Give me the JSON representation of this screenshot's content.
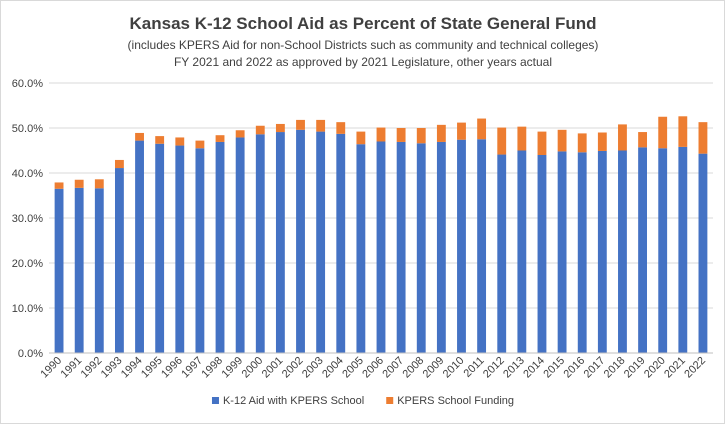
{
  "chart_data": {
    "type": "bar",
    "stacked": true,
    "title": "Kansas K-12 School Aid as Percent of State General Fund",
    "subtitle_lines": [
      "(includes KPERS Aid for non-School Districts such as community and technical colleges)",
      "FY 2021 and 2022 as approved by 2021 Legislature, other years actual"
    ],
    "xlabel": "",
    "ylabel": "",
    "ylim": [
      0,
      60
    ],
    "yticks": [
      0,
      10,
      20,
      30,
      40,
      50,
      60
    ],
    "ytick_labels": [
      "0.0%",
      "10.0%",
      "20.0%",
      "30.0%",
      "40.0%",
      "50.0%",
      "60.0%"
    ],
    "grid": true,
    "legend_position": "bottom",
    "categories": [
      "1990",
      "1991",
      "1992",
      "1993",
      "1994",
      "1995",
      "1996",
      "1997",
      "1998",
      "1999",
      "2000",
      "2001",
      "2002",
      "2003",
      "2004",
      "2005",
      "2006",
      "2007",
      "2008",
      "2009",
      "2010",
      "2011",
      "2012",
      "2013",
      "2014",
      "2015",
      "2016",
      "2017",
      "2018",
      "2019",
      "2020",
      "2021",
      "2022"
    ],
    "series": [
      {
        "name": "K-12 Aid with KPERS School",
        "color": "#4472c4",
        "values": [
          36.5,
          36.7,
          36.6,
          41.1,
          47.2,
          46.5,
          46.1,
          45.5,
          46.9,
          47.9,
          48.6,
          49.1,
          49.6,
          49.2,
          48.7,
          46.4,
          47.0,
          46.9,
          46.6,
          46.9,
          47.4,
          47.5,
          44.1,
          45.0,
          44.0,
          44.8,
          44.6,
          44.9,
          45.0,
          45.7,
          45.5,
          45.8,
          44.3
        ]
      },
      {
        "name": "KPERS School Funding",
        "color": "#ed7d31",
        "values": [
          1.4,
          1.8,
          2.0,
          1.8,
          1.7,
          1.7,
          1.8,
          1.7,
          1.5,
          1.6,
          1.9,
          1.8,
          2.2,
          2.6,
          2.6,
          2.8,
          3.1,
          3.1,
          3.4,
          3.8,
          3.8,
          4.6,
          6.0,
          5.3,
          5.2,
          4.8,
          4.2,
          4.1,
          5.8,
          3.4,
          7.0,
          6.8,
          7.0
        ]
      }
    ]
  }
}
